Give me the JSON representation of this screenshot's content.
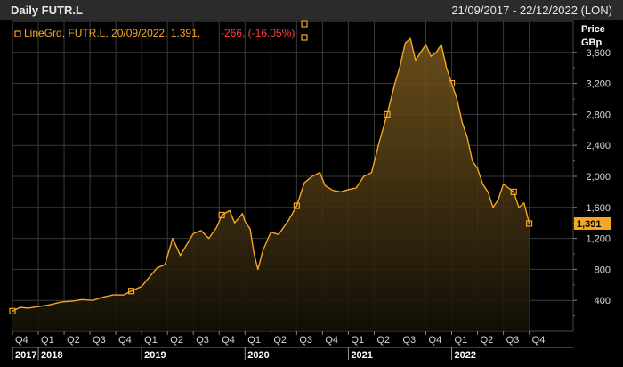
{
  "header": {
    "title": "Daily FUTR.L",
    "date_range": "21/09/2017 - 22/12/2022 (LON)"
  },
  "legend": {
    "series_label": "LineGrd, FUTR.L, 20/09/2022, 1,391,",
    "change_label": "-266, (-16.05%)"
  },
  "axis": {
    "y_title_line1": "Price",
    "y_title_line2": "GBp",
    "last_value_label": "1,391"
  },
  "colors": {
    "line": "#f5a623",
    "fill_top": "#7a5a1e",
    "fill_bottom": "#141007",
    "grid": "#3a3a3a",
    "negative": "#ff3b3b",
    "last_box": "#f5a623"
  },
  "chart_data": {
    "type": "area",
    "title": "Daily FUTR.L",
    "xlabel": "",
    "ylabel": "Price GBp",
    "ylim": [
      0,
      4000
    ],
    "xlim": [
      0,
      21.7
    ],
    "grid": true,
    "y_ticks": [
      400,
      800,
      1200,
      1600,
      2000,
      2400,
      2800,
      3200,
      3600
    ],
    "y_tick_labels": [
      "400",
      "800",
      "1,200",
      "1,600",
      "2,000",
      "2,400",
      "2,800",
      "3,200",
      "3,600"
    ],
    "x_quarter_labels": [
      "Q4",
      "Q1",
      "Q2",
      "Q3",
      "Q4",
      "Q1",
      "Q2",
      "Q3",
      "Q4",
      "Q1",
      "Q2",
      "Q3",
      "Q4",
      "Q1",
      "Q2",
      "Q3",
      "Q4",
      "Q1",
      "Q2",
      "Q3",
      "Q4"
    ],
    "years": [
      {
        "label": "2017",
        "start": 0,
        "end": 1
      },
      {
        "label": "2018",
        "start": 1,
        "end": 5
      },
      {
        "label": "2019",
        "start": 5,
        "end": 9
      },
      {
        "label": "2020",
        "start": 9,
        "end": 13
      },
      {
        "label": "2021",
        "start": 13,
        "end": 17
      },
      {
        "label": "2022",
        "start": 17,
        "end": 21
      }
    ],
    "series": [
      {
        "name": "FUTR.L",
        "x": [
          0,
          0.3,
          0.6,
          1.0,
          1.4,
          1.9,
          2.3,
          2.7,
          3.1,
          3.5,
          3.9,
          4.3,
          4.6,
          5.0,
          5.3,
          5.6,
          5.9,
          6.2,
          6.5,
          6.8,
          7.0,
          7.3,
          7.6,
          7.9,
          8.1,
          8.4,
          8.6,
          8.9,
          9.0,
          9.2,
          9.35,
          9.5,
          9.7,
          10.0,
          10.3,
          10.7,
          11.0,
          11.3,
          11.6,
          11.9,
          12.1,
          12.4,
          12.7,
          13.0,
          13.3,
          13.6,
          13.9,
          14.2,
          14.5,
          14.8,
          15.0,
          15.2,
          15.4,
          15.6,
          15.8,
          16.0,
          16.2,
          16.4,
          16.6,
          16.8,
          17.0,
          17.2,
          17.4,
          17.6,
          17.8,
          18.0,
          18.2,
          18.4,
          18.6,
          18.8,
          19.0,
          19.2,
          19.4,
          19.6,
          19.8,
          20.0
        ],
        "values": [
          260,
          310,
          300,
          320,
          340,
          380,
          390,
          410,
          400,
          440,
          470,
          470,
          520,
          580,
          700,
          820,
          860,
          1200,
          980,
          1150,
          1260,
          1300,
          1200,
          1340,
          1500,
          1560,
          1400,
          1520,
          1420,
          1320,
          1000,
          800,
          1050,
          1280,
          1250,
          1440,
          1620,
          1920,
          2000,
          2050,
          1880,
          1820,
          1800,
          1830,
          1850,
          2000,
          2050,
          2450,
          2800,
          3200,
          3420,
          3720,
          3780,
          3500,
          3600,
          3700,
          3550,
          3600,
          3700,
          3400,
          3200,
          3000,
          2700,
          2500,
          2200,
          2100,
          1900,
          1800,
          1600,
          1700,
          1900,
          1850,
          1800,
          1600,
          1657,
          1391
        ]
      }
    ]
  }
}
